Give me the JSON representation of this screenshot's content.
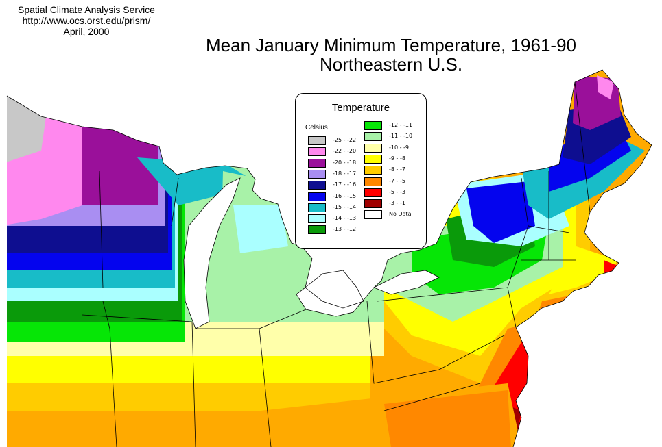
{
  "credit": {
    "line1": "Spatial Climate Analysis Service",
    "line2": "http://www.ocs.orst.edu/prism/",
    "line3": "April, 2000"
  },
  "title": {
    "line1": "Mean January Minimum Temperature, 1961-90",
    "line2": "Northeastern U.S."
  },
  "legend": {
    "title": "Temperature",
    "unit": "Celsius",
    "items": [
      {
        "label": "-25 - -22",
        "color": "#c8c8c8"
      },
      {
        "label": "-22 - -20",
        "color": "#ff88ee"
      },
      {
        "label": "-20 - -18",
        "color": "#9a109a"
      },
      {
        "label": "-18 - -17",
        "color": "#a98ef2"
      },
      {
        "label": "-17 - -16",
        "color": "#0e0e90"
      },
      {
        "label": "-16 - -15",
        "color": "#0404ee"
      },
      {
        "label": "-15 - -14",
        "color": "#18bcc8"
      },
      {
        "label": "-14 - -13",
        "color": "#aaffff"
      },
      {
        "label": "-13 - -12",
        "color": "#0a9a0a"
      },
      {
        "label": "-12 - -11",
        "color": "#06e606"
      },
      {
        "label": "-11 - -10",
        "color": "#a8f2a8"
      },
      {
        "label": "-10 - -9",
        "color": "#ffffaa"
      },
      {
        "label": "-9 - -8",
        "color": "#ffff00"
      },
      {
        "label": "-8 - -7",
        "color": "#ffcc00"
      },
      {
        "label": "-7 - -5",
        "color": "#ff8800"
      },
      {
        "label": "-5 - -3",
        "color": "#ff0000"
      },
      {
        "label": "-3 - -1",
        "color": "#a00000"
      },
      {
        "label": "No Data",
        "color": "#ffffff"
      }
    ]
  }
}
